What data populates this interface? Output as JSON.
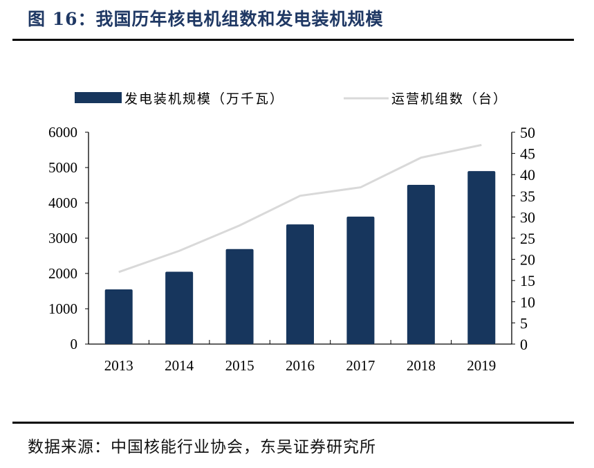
{
  "title": "图 16：我国历年核电机组数和发电装机规模",
  "source": "数据来源：中国核能行业协会，东吴证券研究所",
  "chart_data": {
    "type": "bar+line",
    "categories": [
      "2013",
      "2014",
      "2015",
      "2016",
      "2017",
      "2018",
      "2019"
    ],
    "series": [
      {
        "name": "发电装机规模（万千瓦）",
        "type": "bar",
        "axis": "left",
        "color": "#17365d",
        "values": [
          1550,
          2050,
          2690,
          3390,
          3610,
          4510,
          4900
        ]
      },
      {
        "name": "运营机组数（台）",
        "type": "line",
        "axis": "right",
        "color": "#d9d9d9",
        "values": [
          17,
          22,
          28,
          35,
          37,
          44,
          47
        ]
      }
    ],
    "y_left": {
      "range": [
        0,
        6000
      ],
      "ticks": [
        0,
        1000,
        2000,
        3000,
        4000,
        5000,
        6000
      ]
    },
    "y_right": {
      "range": [
        0,
        50
      ],
      "ticks": [
        0,
        5,
        10,
        15,
        20,
        25,
        30,
        35,
        40,
        45,
        50
      ]
    },
    "legend_position": "top",
    "grid": false
  }
}
